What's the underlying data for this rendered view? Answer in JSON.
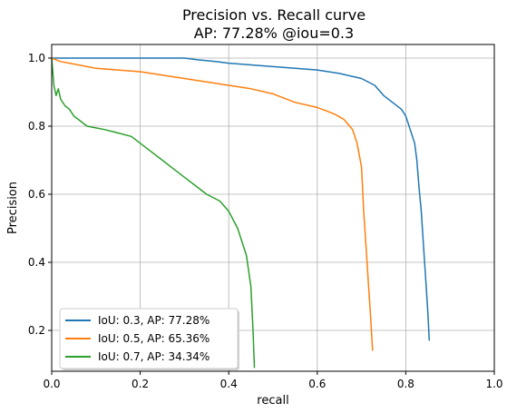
{
  "chart_data": {
    "type": "line",
    "title": "Precision vs. Recall curve",
    "subtitle": "AP: 77.28% @iou=0.3",
    "xlabel": "recall",
    "ylabel": "Precision",
    "xlim": [
      0.0,
      1.0
    ],
    "ylim": [
      0.08,
      1.04
    ],
    "x_ticks": [
      0.0,
      0.2,
      0.4,
      0.6,
      0.8,
      1.0
    ],
    "x_tick_labels": [
      "0.0",
      "0.2",
      "0.4",
      "0.6",
      "0.8",
      "1.0"
    ],
    "y_ticks": [
      0.2,
      0.4,
      0.6,
      0.8,
      1.0
    ],
    "y_tick_labels": [
      "0.2",
      "0.4",
      "0.6",
      "0.8",
      "1.0"
    ],
    "grid": true,
    "legend_position": "lower-left",
    "series": [
      {
        "name": "IoU: 0.3, AP: 77.28%",
        "color": "#1f77b4",
        "x": [
          0.0,
          0.1,
          0.2,
          0.3,
          0.33,
          0.37,
          0.4,
          0.45,
          0.5,
          0.55,
          0.6,
          0.65,
          0.7,
          0.73,
          0.75,
          0.77,
          0.79,
          0.8,
          0.81,
          0.82,
          0.825,
          0.83,
          0.835,
          0.84,
          0.845,
          0.85,
          0.853
        ],
        "y": [
          1.0,
          1.0,
          1.0,
          1.0,
          0.995,
          0.99,
          0.985,
          0.98,
          0.975,
          0.97,
          0.965,
          0.955,
          0.94,
          0.92,
          0.89,
          0.87,
          0.85,
          0.83,
          0.79,
          0.75,
          0.7,
          0.62,
          0.55,
          0.45,
          0.35,
          0.25,
          0.17
        ]
      },
      {
        "name": "IoU: 0.5, AP: 65.36%",
        "color": "#ff7f0e",
        "x": [
          0.0,
          0.02,
          0.04,
          0.06,
          0.08,
          0.1,
          0.15,
          0.2,
          0.25,
          0.3,
          0.35,
          0.4,
          0.45,
          0.5,
          0.55,
          0.6,
          0.62,
          0.64,
          0.66,
          0.68,
          0.69,
          0.7,
          0.705,
          0.71,
          0.715,
          0.72,
          0.725
        ],
        "y": [
          1.0,
          0.99,
          0.985,
          0.98,
          0.975,
          0.97,
          0.965,
          0.96,
          0.95,
          0.94,
          0.93,
          0.92,
          0.91,
          0.895,
          0.87,
          0.855,
          0.845,
          0.835,
          0.82,
          0.79,
          0.75,
          0.68,
          0.55,
          0.45,
          0.35,
          0.25,
          0.14
        ]
      },
      {
        "name": "IoU: 0.7, AP: 34.34%",
        "color": "#2ca02c",
        "x": [
          0.0,
          0.005,
          0.01,
          0.015,
          0.02,
          0.03,
          0.04,
          0.05,
          0.06,
          0.08,
          0.1,
          0.12,
          0.15,
          0.18,
          0.2,
          0.22,
          0.25,
          0.28,
          0.3,
          0.33,
          0.35,
          0.38,
          0.4,
          0.42,
          0.44,
          0.45,
          0.455,
          0.458
        ],
        "y": [
          1.0,
          0.92,
          0.89,
          0.91,
          0.88,
          0.86,
          0.85,
          0.83,
          0.82,
          0.8,
          0.795,
          0.79,
          0.78,
          0.77,
          0.75,
          0.73,
          0.7,
          0.67,
          0.65,
          0.62,
          0.6,
          0.58,
          0.55,
          0.5,
          0.42,
          0.33,
          0.2,
          0.09
        ]
      }
    ]
  }
}
